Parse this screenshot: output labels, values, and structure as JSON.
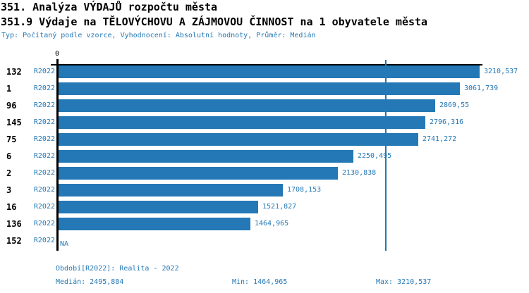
{
  "accent_color": "#2478b5",
  "axis_color": "#000000",
  "header": {
    "title": "351. Analýza VÝDAJŮ rozpočtu města",
    "subtitle": "351.9 Výdaje na TĚLOVÝCHOVU A ZÁJMOVOU ČINNOST na 1 obyvatele města",
    "meta": "Typ: Počítaný podle vzorce, Vyhodnocení: Absolutní hodnoty, Průměr: Medián"
  },
  "chart_data": {
    "type": "bar",
    "orientation": "horizontal",
    "title": "351.9 Výdaje na TĚLOVÝCHOVU A ZÁJMOVOU ČINNOST na 1 obyvatele města",
    "x_axis": {
      "origin_label": "0",
      "min": 0,
      "max": 3210.537,
      "grid": false
    },
    "median_value": 2495.884,
    "period": "R2022",
    "categories": [
      "132",
      "1",
      "96",
      "145",
      "75",
      "6",
      "2",
      "3",
      "16",
      "136",
      "152"
    ],
    "rows": [
      {
        "id": "132",
        "period": "R2022",
        "value": 3210.537,
        "value_label": "3210,537"
      },
      {
        "id": "1",
        "period": "R2022",
        "value": 3061.739,
        "value_label": "3061,739"
      },
      {
        "id": "96",
        "period": "R2022",
        "value": 2869.55,
        "value_label": "2869,55"
      },
      {
        "id": "145",
        "period": "R2022",
        "value": 2796.316,
        "value_label": "2796,316"
      },
      {
        "id": "75",
        "period": "R2022",
        "value": 2741.272,
        "value_label": "2741,272"
      },
      {
        "id": "6",
        "period": "R2022",
        "value": 2250.495,
        "value_label": "2250,495"
      },
      {
        "id": "2",
        "period": "R2022",
        "value": 2130.838,
        "value_label": "2130,838"
      },
      {
        "id": "3",
        "period": "R2022",
        "value": 1708.153,
        "value_label": "1708,153"
      },
      {
        "id": "16",
        "period": "R2022",
        "value": 1521.827,
        "value_label": "1521,827"
      },
      {
        "id": "136",
        "period": "R2022",
        "value": 1464.965,
        "value_label": "1464,965"
      },
      {
        "id": "152",
        "period": "R2022",
        "value": null,
        "value_label": "NA"
      }
    ]
  },
  "footer": {
    "period_line": "Období[R2022]: Realita - 2022",
    "median_line": "Medián: 2495,884",
    "min_line": "Min: 1464,965",
    "max_line": "Max: 3210,537"
  }
}
